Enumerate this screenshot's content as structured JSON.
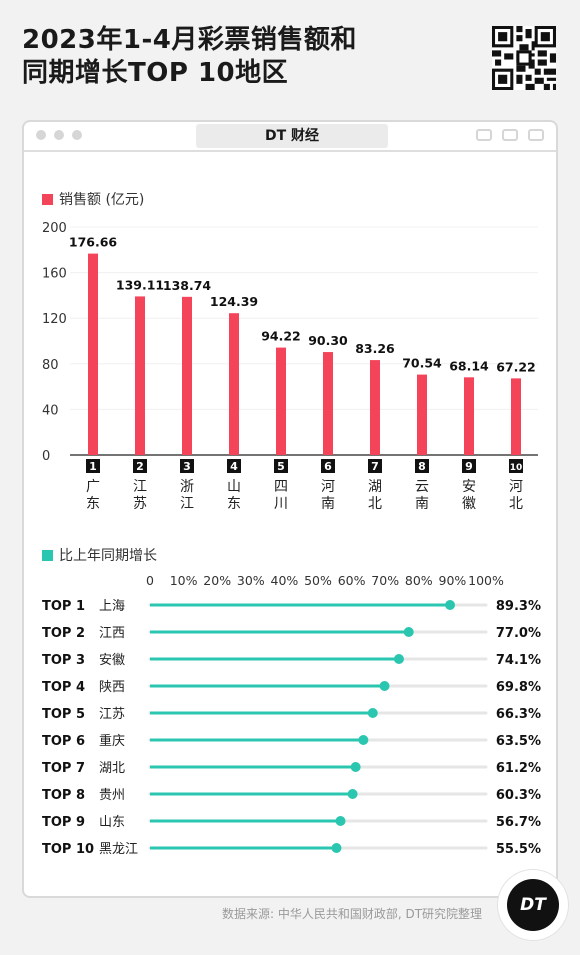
{
  "title_line1": "2023年1-4月彩票销售额和",
  "title_line2": "同期增长TOP 10地区",
  "brand": "DT 财经",
  "bar_legend": "销售额 (亿元)",
  "lollipop_legend": "比上年同期增长",
  "source": "数据来源: 中华人民共和国财政部, DT研究院整理",
  "logo_text": "DT",
  "colors": {
    "bar": "#f4445a",
    "lollipop": "#2bc6b0",
    "track": "#e6e6e6"
  },
  "chart_data": [
    {
      "type": "bar",
      "categories": [
        "广东",
        "江苏",
        "浙江",
        "山东",
        "四川",
        "河南",
        "湖北",
        "云南",
        "安徽",
        "河北"
      ],
      "ranks": [
        "1",
        "2",
        "3",
        "4",
        "5",
        "6",
        "7",
        "8",
        "9",
        "10"
      ],
      "values": [
        176.66,
        139.11,
        138.74,
        124.39,
        94.22,
        90.3,
        83.26,
        70.54,
        68.14,
        67.22
      ],
      "labels": [
        "176.66",
        "139.11",
        "138.74",
        "124.39",
        "94.22",
        "90.30",
        "83.26",
        "70.54",
        "68.14",
        "67.22"
      ],
      "ylabel": "销售额 (亿元)",
      "ylim": [
        0,
        200
      ],
      "yticks": [
        "0",
        "40",
        "80",
        "120",
        "160",
        "200"
      ],
      "ytick_values": [
        0,
        40,
        80,
        120,
        160,
        200
      ]
    },
    {
      "type": "bar",
      "orientation": "horizontal",
      "style": "lollipop",
      "ranks": [
        "TOP 1",
        "TOP 2",
        "TOP 3",
        "TOP 4",
        "TOP 5",
        "TOP 6",
        "TOP 7",
        "TOP 8",
        "TOP 9",
        "TOP 10"
      ],
      "categories": [
        "上海",
        "江西",
        "安徽",
        "陕西",
        "江苏",
        "重庆",
        "湖北",
        "贵州",
        "山东",
        "黑龙江"
      ],
      "values": [
        89.3,
        77.0,
        74.1,
        69.8,
        66.3,
        63.5,
        61.2,
        60.3,
        56.7,
        55.5
      ],
      "labels": [
        "89.3%",
        "77.0%",
        "74.1%",
        "69.8%",
        "66.3%",
        "63.5%",
        "61.2%",
        "60.3%",
        "56.7%",
        "55.5%"
      ],
      "xlabel": "比上年同期增长",
      "xlim": [
        0,
        100
      ],
      "xticks": [
        "0",
        "10%",
        "20%",
        "30%",
        "40%",
        "50%",
        "60%",
        "70%",
        "80%",
        "90%",
        "100%"
      ],
      "xtick_values": [
        0,
        10,
        20,
        30,
        40,
        50,
        60,
        70,
        80,
        90,
        100
      ]
    }
  ]
}
